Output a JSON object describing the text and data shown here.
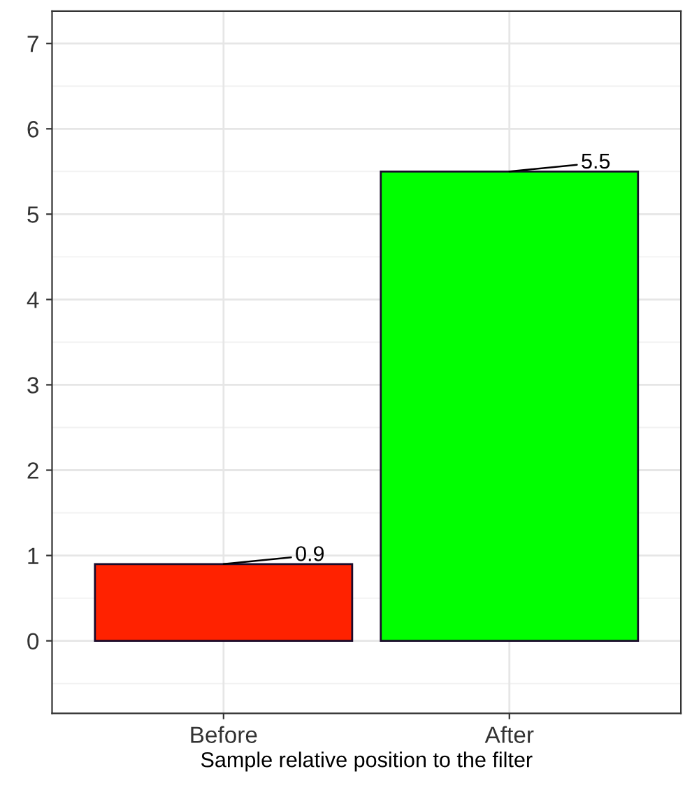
{
  "chart_data": {
    "type": "bar",
    "xlabel": "Sample relative position to the filter",
    "categories": [
      "Before",
      "After"
    ],
    "values": [
      0.9,
      5.5
    ],
    "colors": [
      "#ff2200",
      "#00ff00"
    ],
    "ylim": [
      -0.85,
      7.38
    ],
    "yticks": [
      0,
      1,
      2,
      3,
      4,
      5,
      6,
      7
    ],
    "grid": true,
    "data_labels": true
  }
}
